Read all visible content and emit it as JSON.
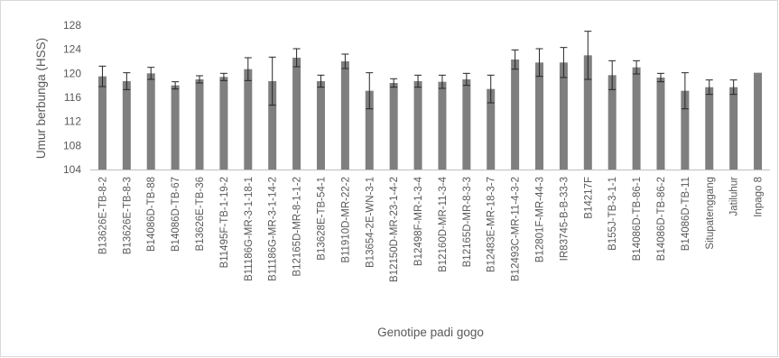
{
  "chart_data": {
    "type": "bar",
    "xlabel": "Genotipe padi gogo",
    "ylabel": "Umur berbunga (HSS)",
    "ylim": [
      104,
      128
    ],
    "yticks": [
      104,
      108,
      112,
      116,
      120,
      124,
      128
    ],
    "grid": false,
    "legend": "none",
    "bar_color": "#7f7f7f",
    "categories": [
      "B13626E-TB-8-2",
      "B13626E-TB-8-3",
      "B14086D-TB-88",
      "B14086D-TB-67",
      "B13626E-TB-36",
      "B11495F-TB-1-19-2",
      "B11186G-MR-3-1-18-1",
      "B11186G-MR-3-1-14-2",
      "B12165D-MR-8-1-1-2",
      "B13628E-TB-54-1",
      "B11910D-MR-22-2",
      "B13654-2E-WN-3-1",
      "B12150D-MR-23-1-4-2",
      "B12498F-MR-1-3-4",
      "B12160D-MR-11-3-4",
      "B12165D-MR-8-3-3",
      "B12483E-MR-18-3-7",
      "B12493C-MR-11-4-3-2",
      "B12801F-MR-44-3",
      "IR83745-B-B-33-3",
      "B14217F",
      "B155J-TB-3-1-1",
      "B14086D-TB-86-1",
      "B14086D-TB-86-2",
      "B14086D-TB-11",
      "Situpatenggang",
      "Jatiluhur",
      "Inpago 8"
    ],
    "values": [
      119.5,
      118.7,
      120.0,
      118.0,
      119.0,
      119.4,
      120.7,
      118.7,
      122.6,
      118.7,
      122.0,
      117.1,
      118.4,
      118.7,
      118.6,
      119.0,
      117.4,
      122.3,
      121.8,
      121.8,
      123.0,
      119.7,
      121.0,
      119.3,
      117.1,
      117.7,
      117.7,
      120.1
    ],
    "errors": [
      1.7,
      1.4,
      1.0,
      0.6,
      0.6,
      0.6,
      1.9,
      4.0,
      1.5,
      1.0,
      1.2,
      3.0,
      0.7,
      1.0,
      1.1,
      1.0,
      2.3,
      1.6,
      2.3,
      2.5,
      4.0,
      2.4,
      1.1,
      0.7,
      3.0,
      1.2,
      1.2,
      0
    ]
  }
}
